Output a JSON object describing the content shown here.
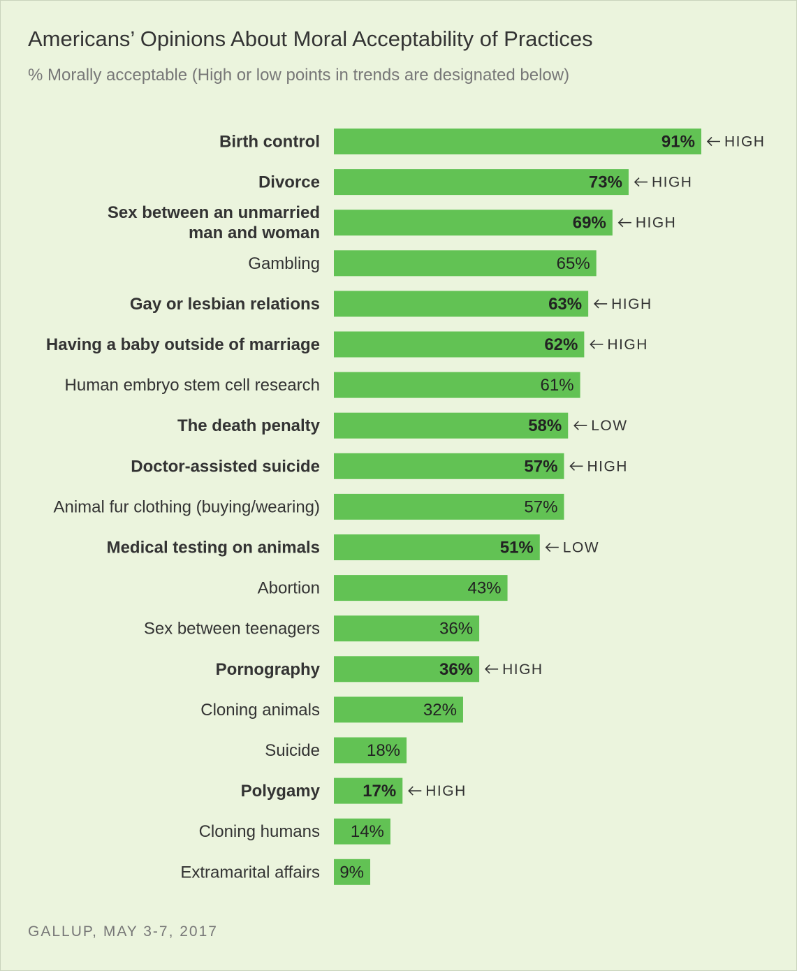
{
  "chart_data": {
    "type": "bar",
    "orientation": "horizontal",
    "title": "Americans’ Opinions About Moral Acceptability of Practices",
    "subtitle": "% Morally acceptable (High or low points in trends are designated below)",
    "source": "GALLUP, MAY 3-7, 2017",
    "xlim": [
      0,
      100
    ],
    "bar_color": "#62c254",
    "categories": [
      "Birth control",
      "Divorce",
      "Sex between an unmarried man and woman",
      "Gambling",
      "Gay or lesbian relations",
      "Having a baby outside of marriage",
      "Human embryo stem cell research",
      "The death penalty",
      "Doctor-assisted suicide",
      "Animal fur clothing (buying/wearing)",
      "Medical testing on animals",
      "Abortion",
      "Sex between teenagers",
      "Pornography",
      "Cloning animals",
      "Suicide",
      "Polygamy",
      "Cloning humans",
      "Extramarital affairs"
    ],
    "label_lines": [
      [
        "Birth control"
      ],
      [
        "Divorce"
      ],
      [
        "Sex between an unmarried",
        "man and woman"
      ],
      [
        "Gambling"
      ],
      [
        "Gay or lesbian relations"
      ],
      [
        "Having a baby outside of marriage"
      ],
      [
        "Human embryo stem cell research"
      ],
      [
        "The death penalty"
      ],
      [
        "Doctor-assisted suicide"
      ],
      [
        "Animal fur clothing (buying/wearing)"
      ],
      [
        "Medical testing on animals"
      ],
      [
        "Abortion"
      ],
      [
        "Sex between teenagers"
      ],
      [
        "Pornography"
      ],
      [
        "Cloning animals"
      ],
      [
        "Suicide"
      ],
      [
        "Polygamy"
      ],
      [
        "Cloning humans"
      ],
      [
        "Extramarital affairs"
      ]
    ],
    "values": [
      91,
      73,
      69,
      65,
      63,
      62,
      61,
      58,
      57,
      57,
      51,
      43,
      36,
      36,
      32,
      18,
      17,
      14,
      9
    ],
    "value_labels": [
      "91%",
      "73%",
      "69%",
      "65%",
      "63%",
      "62%",
      "61%",
      "58%",
      "57%",
      "57%",
      "51%",
      "43%",
      "36%",
      "36%",
      "32%",
      "18%",
      "17%",
      "14%",
      "9%"
    ],
    "trend_notes": [
      "HIGH",
      "HIGH",
      "HIGH",
      "",
      "HIGH",
      "HIGH",
      "",
      "LOW",
      "HIGH",
      "",
      "LOW",
      "",
      "",
      "HIGH",
      "",
      "",
      "HIGH",
      "",
      ""
    ]
  }
}
